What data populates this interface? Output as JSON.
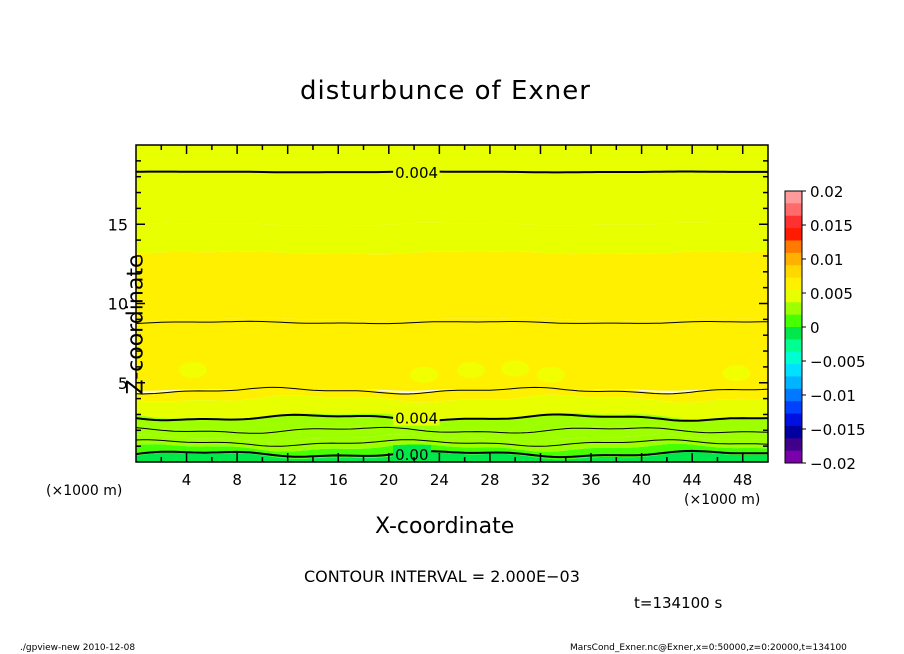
{
  "chart_data": {
    "type": "heatmap",
    "title": "disturbunce of Exner",
    "xlabel": "X-coordinate",
    "ylabel": "Z-coordinate",
    "x_unit_label": "(×1000 m)",
    "xlim": [
      0,
      50
    ],
    "ylim": [
      0,
      20
    ],
    "x_ticks": [
      4,
      8,
      12,
      16,
      20,
      24,
      28,
      32,
      36,
      40,
      44,
      48
    ],
    "y_ticks": [
      5,
      10,
      15
    ],
    "colorbar": {
      "range": [
        -0.02,
        0.02
      ],
      "tick_labels": [
        "0.02",
        "0.015",
        "0.01",
        "0.005",
        "0",
        "−0.005",
        "−0.01",
        "−0.015",
        "−0.02"
      ],
      "tick_values": [
        0.02,
        0.015,
        0.01,
        0.005,
        0,
        -0.005,
        -0.01,
        -0.015,
        -0.02
      ],
      "colors": [
        "#ff9a9a",
        "#ff6a6a",
        "#ff3030",
        "#ff1a00",
        "#ff7a00",
        "#ffb000",
        "#ffd800",
        "#fff000",
        "#e8ff00",
        "#9eff00",
        "#46ff00",
        "#00e84a",
        "#00ff90",
        "#00ffd0",
        "#00e0ff",
        "#00b4ff",
        "#0078ff",
        "#0040ff",
        "#0010e0",
        "#0000a0",
        "#40008a",
        "#7a00aa"
      ]
    },
    "field_bands_bottom_to_top": [
      {
        "z_from": 0.0,
        "z_to": 0.4,
        "value": 0.0
      },
      {
        "z_from": 0.4,
        "z_to": 0.9,
        "value": 0.001
      },
      {
        "z_from": 0.9,
        "z_to": 1.5,
        "value": 0.002
      },
      {
        "z_from": 1.5,
        "z_to": 2.1,
        "value": 0.003
      },
      {
        "z_from": 2.1,
        "z_to": 2.9,
        "value": 0.0035
      },
      {
        "z_from": 2.9,
        "z_to": 4.0,
        "value": 0.0045
      },
      {
        "z_from": 4.0,
        "z_to": 4.6,
        "value": 0.0055
      },
      {
        "z_from": 4.6,
        "z_to": 9.0,
        "value": 0.0065
      },
      {
        "z_from": 9.0,
        "z_to": 13.2,
        "value": 0.0055
      },
      {
        "z_from": 13.2,
        "z_to": 15.0,
        "value": 0.0045
      },
      {
        "z_from": 15.0,
        "z_to": 20.0,
        "value": 0.004
      }
    ],
    "contour_lines": [
      {
        "z": 0.5,
        "label": "0.00",
        "bold": true,
        "label_x": 20.5
      },
      {
        "z": 1.2,
        "bold": false
      },
      {
        "z": 2.0,
        "bold": false
      },
      {
        "z": 2.8,
        "label": "0.004",
        "bold": true,
        "label_x": 20.5
      },
      {
        "z": 4.5,
        "bold": false
      },
      {
        "z": 8.8,
        "bold": false
      },
      {
        "z": 18.3,
        "label": "0.004",
        "bold": true,
        "label_x": 20.5
      }
    ],
    "maxima_blobs": [
      {
        "x": 4.5,
        "z": 5.8
      },
      {
        "x": 22.8,
        "z": 5.5
      },
      {
        "x": 26.5,
        "z": 5.8
      },
      {
        "x": 30.0,
        "z": 5.9
      },
      {
        "x": 32.8,
        "z": 5.5
      },
      {
        "x": 47.5,
        "z": 5.6
      }
    ]
  },
  "texts": {
    "contour_interval": "CONTOUR INTERVAL = 2.000E−03",
    "time": "t=134100 s",
    "footer_left": "./gpview-new   2010-12-08",
    "footer_right": "MarsCond_Exner.nc@Exner,x=0:50000,z=0:20000,t=134100"
  }
}
